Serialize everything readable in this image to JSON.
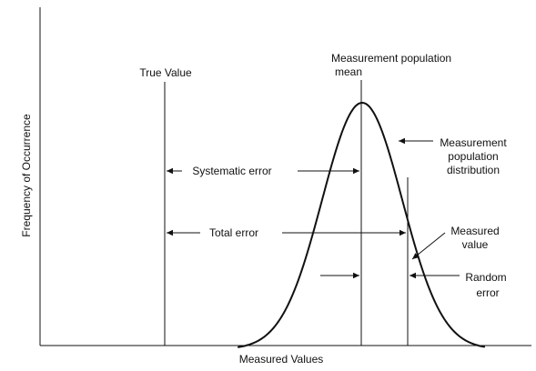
{
  "axes": {
    "y_label": "Frequency of Occurrence",
    "x_label": "Measured Values"
  },
  "labels": {
    "true_value": "True Value",
    "population_mean_line1": "Measurement population",
    "population_mean_line2": "mean",
    "distribution_line1": "Measurement",
    "distribution_line2": "population",
    "distribution_line3": "distribution",
    "systematic_error": "Systematic error",
    "total_error": "Total error",
    "measured_value_line1": "Measured",
    "measured_value_line2": "value",
    "random_error_line1": "Random",
    "random_error_line2": "error"
  },
  "colors": {
    "ink": "#111111",
    "background": "#ffffff"
  }
}
